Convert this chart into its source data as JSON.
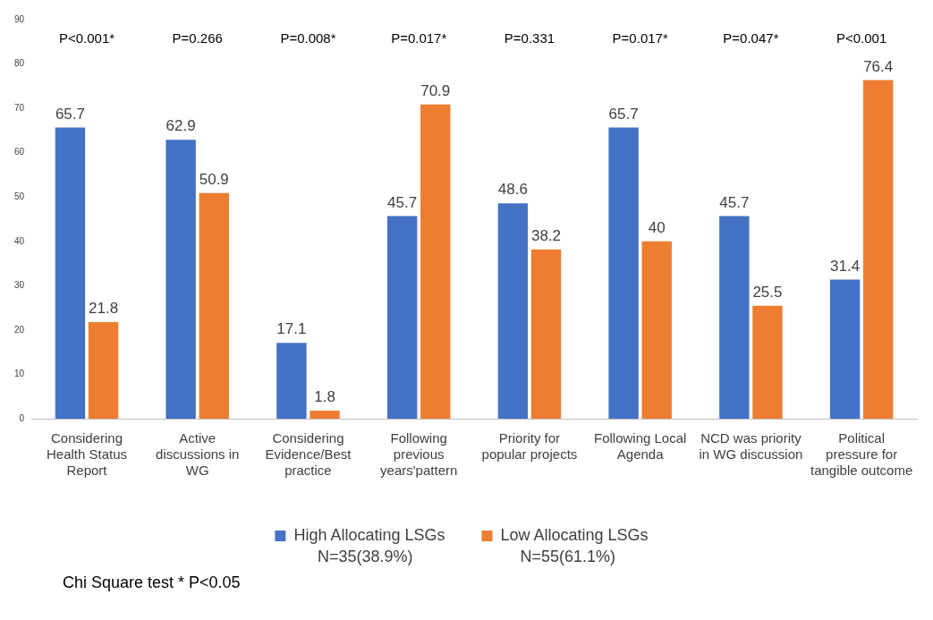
{
  "chart_data": {
    "type": "bar",
    "categories": [
      "Considering Health Status Report",
      "Active discussions in WG",
      "Considering Evidence/Best practice",
      "Following previous years'pattern",
      "Priority for popular projects",
      "Following Local Agenda",
      "NCD was priority in WG discussion",
      "Political pressure for tangible outcome"
    ],
    "series": [
      {
        "name": "High Allocating LSGs",
        "color": "#4472c4",
        "values": [
          65.7,
          62.9,
          17.1,
          45.7,
          48.6,
          65.7,
          45.7,
          31.4
        ]
      },
      {
        "name": "Low Allocating LSGs",
        "color": "#ed7d31",
        "values": [
          21.8,
          50.9,
          1.8,
          70.9,
          38.2,
          40,
          25.5,
          76.4
        ]
      }
    ],
    "ylim": [
      0,
      90
    ],
    "yticks": [
      0,
      10,
      20,
      30,
      40,
      50,
      60,
      70,
      80,
      90
    ],
    "grid": false,
    "legend": "bottom",
    "data_labels": true,
    "annotations": [
      "P<0.001*",
      "P=0.266",
      "P=0.008*",
      "P=0.017*",
      "P=0.331",
      "P=0.017*",
      "P=0.047*",
      "P<0.001",
      "N=35(38.9%)",
      "N=55(61.1%)",
      "Chi Square test * P<0.05"
    ]
  }
}
